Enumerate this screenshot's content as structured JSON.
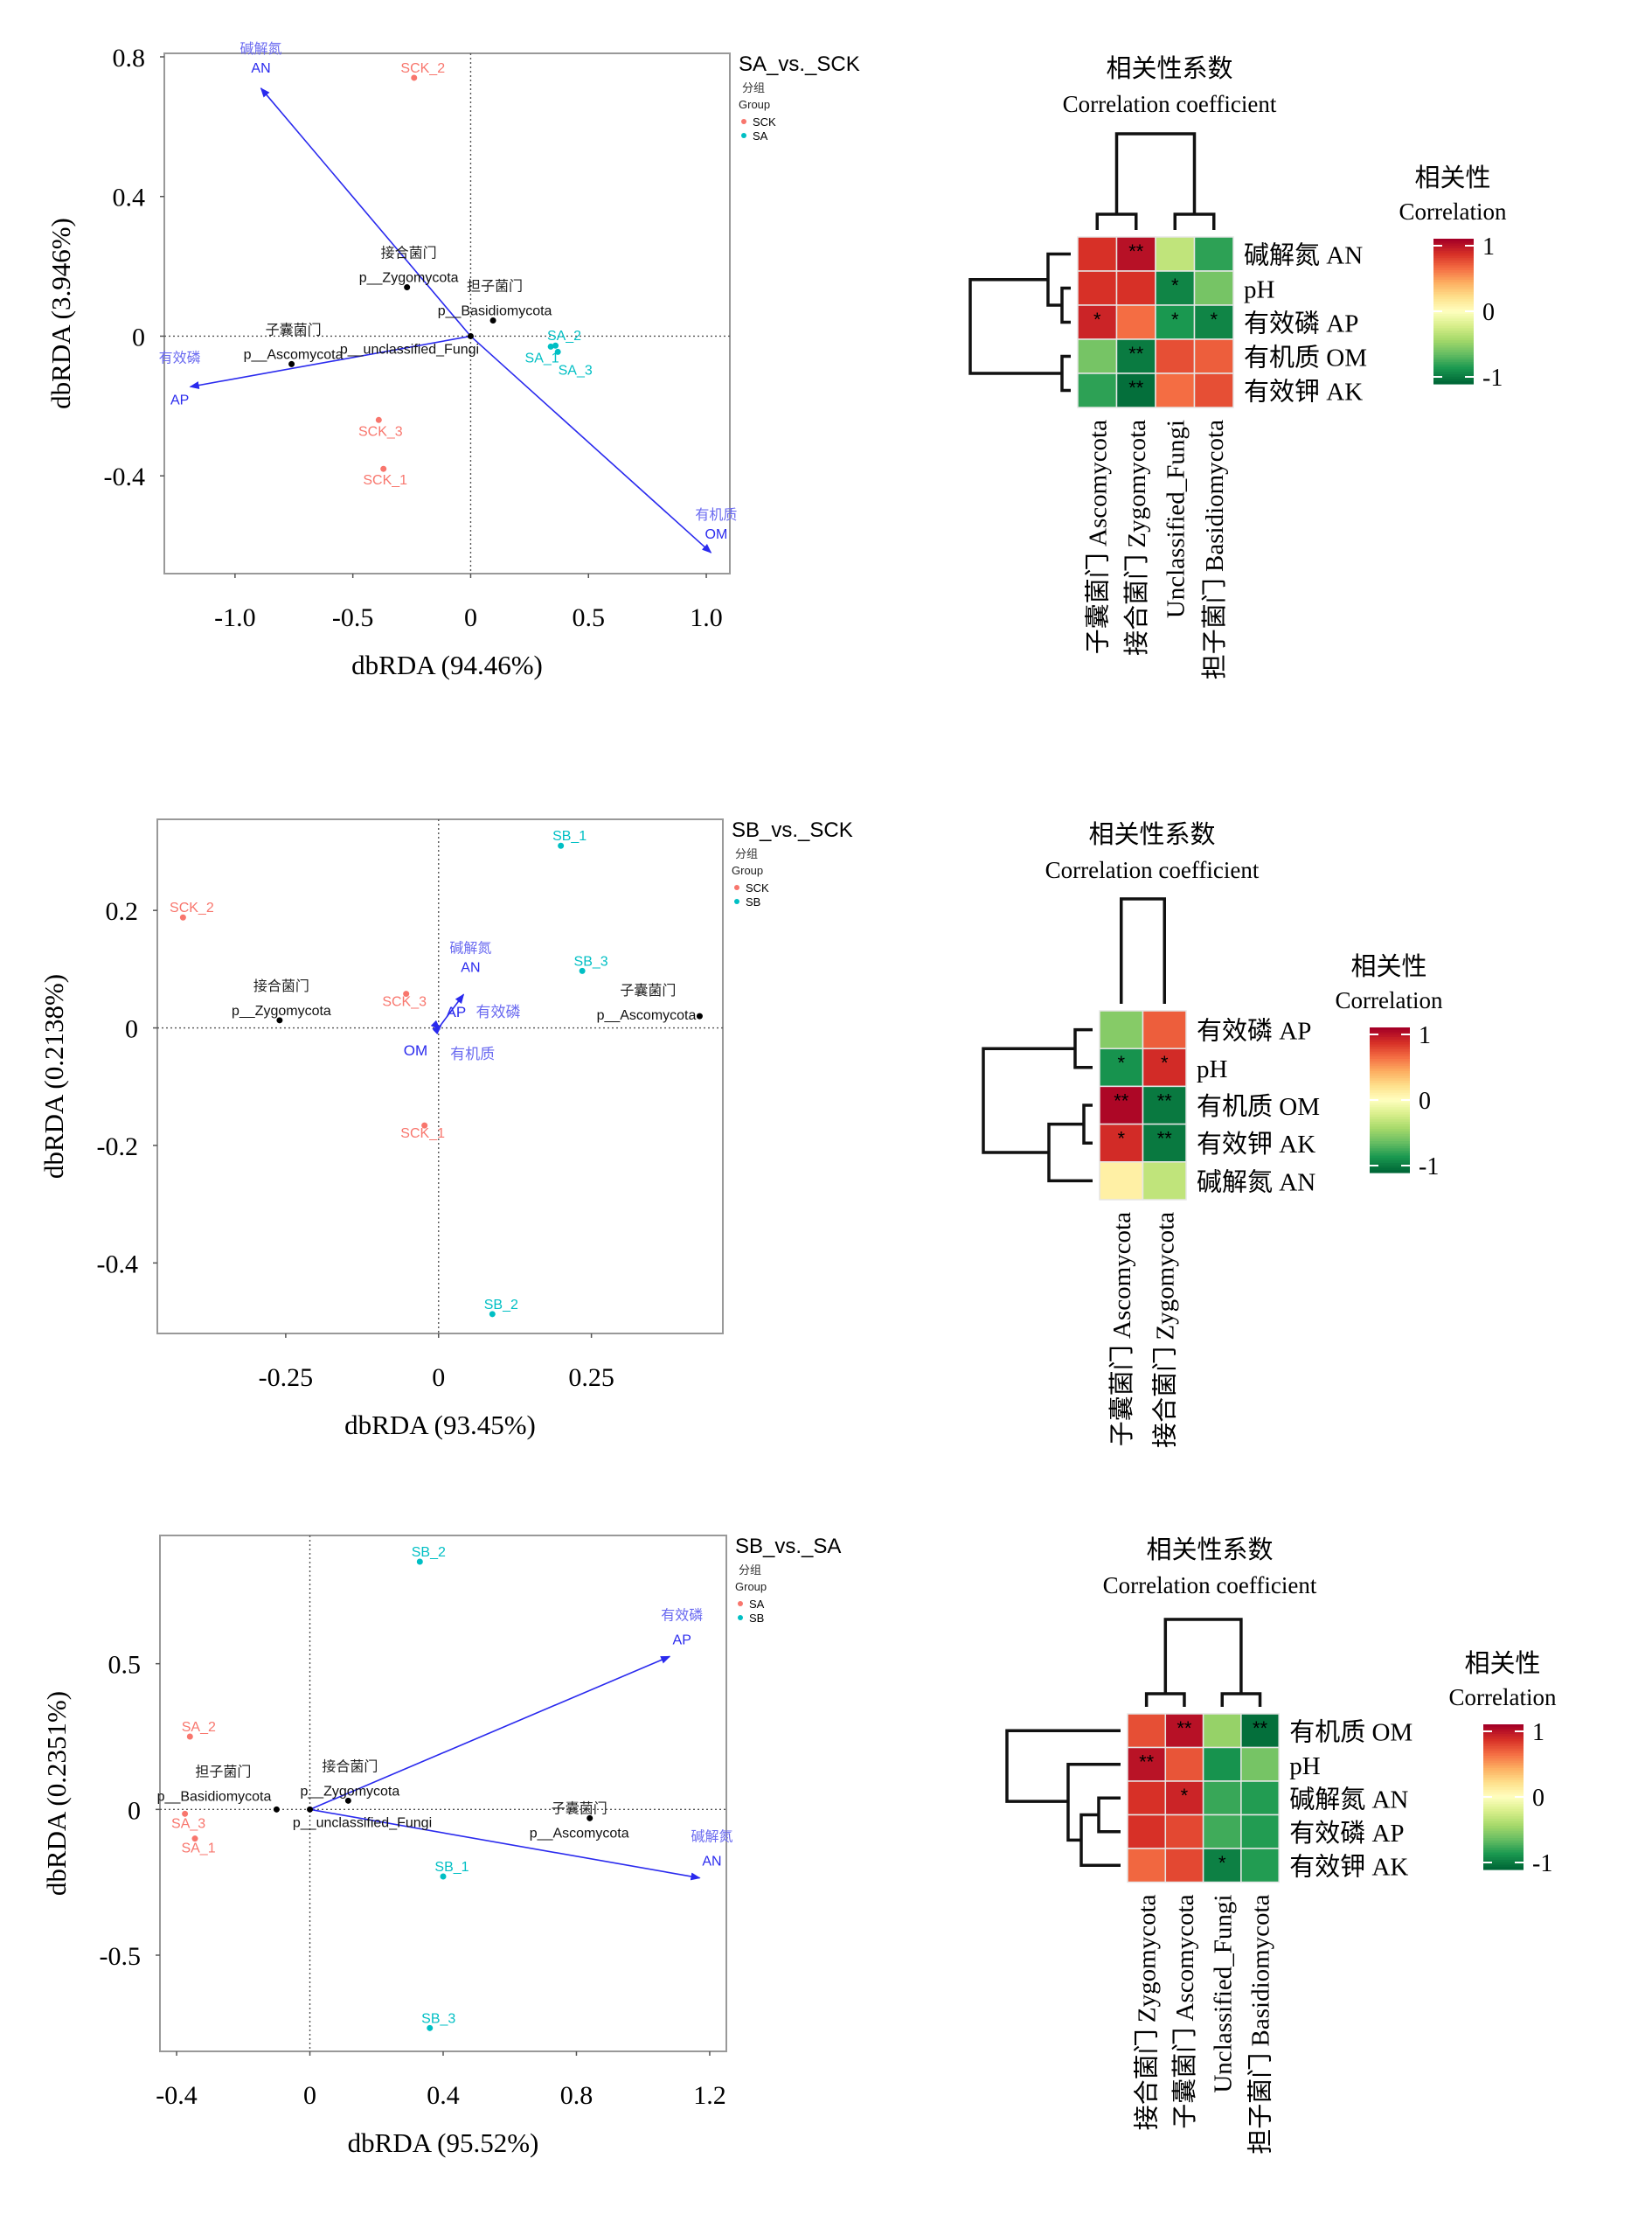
{
  "chart_data": [
    {
      "type": "scatter",
      "subtype": "dbRDA biplot",
      "title": "SA_vs._SCK",
      "xlabel": "dbRDA (94.46%)",
      "ylabel": "dbRDA (3.946%)",
      "xlim": [
        -1.3,
        1.1
      ],
      "ylim": [
        -0.68,
        0.81
      ],
      "xticks": [
        -1.0,
        -0.5,
        0,
        0.5,
        1.0
      ],
      "xtick_labels": [
        "-1.0",
        "-0.5",
        "0",
        "0.5",
        "1.0"
      ],
      "yticks": [
        -0.4,
        0,
        0.4,
        0.8
      ],
      "ytick_labels": [
        "-0.4",
        "0",
        "0.4",
        "0.8"
      ],
      "grid": false,
      "reference_lines": "dotted at x=0 and y=0",
      "legend": {
        "title_cn": "分组",
        "title_en": "Group",
        "placement": "right",
        "entries": [
          {
            "label": "SCK",
            "color": "#f8766d"
          },
          {
            "label": "SA",
            "color": "#00bfc4"
          }
        ]
      },
      "samples": [
        {
          "label": "SCK_2",
          "group": "SCK",
          "x": -0.24,
          "y": 0.74
        },
        {
          "label": "SCK_3",
          "group": "SCK",
          "x": -0.39,
          "y": -0.24
        },
        {
          "label": "SCK_1",
          "group": "SCK",
          "x": -0.37,
          "y": -0.38
        },
        {
          "label": "SA_1",
          "group": "SA",
          "x": 0.34,
          "y": -0.03
        },
        {
          "label": "SA_2",
          "group": "SA",
          "x": 0.36,
          "y": -0.027
        },
        {
          "label": "SA_3",
          "group": "SA",
          "x": 0.37,
          "y": -0.045
        }
      ],
      "env_arrows": [
        {
          "label_cn": "碱解氮",
          "label_en": "AN",
          "x": -0.89,
          "y": 0.71
        },
        {
          "label_cn": "有效磷",
          "label_en": "AP",
          "x": -1.19,
          "y": -0.145
        },
        {
          "label_cn": "有机质",
          "label_en": "OM",
          "x": 1.02,
          "y": -0.62
        }
      ],
      "species": [
        {
          "label_cn": "接合菌门",
          "label_en": "p__Zygomycota",
          "x": -0.27,
          "y": 0.14
        },
        {
          "label_cn": "担子菌门",
          "label_en": "p__Basidiomycota",
          "x": 0.095,
          "y": 0.045
        },
        {
          "label_cn": "",
          "label_en": "p__unclassified_Fungi",
          "x": 0.0,
          "y": 0.0
        },
        {
          "label_cn": "子囊菌门",
          "label_en": "p__Ascomycota",
          "x": -0.76,
          "y": -0.08
        }
      ]
    },
    {
      "type": "heatmap",
      "title_cn": "相关性系数",
      "title_en": "Correlation coefficient",
      "legend_title_cn": "相关性",
      "legend_title_en": "Correlation",
      "scale": {
        "min": -1,
        "max": 1,
        "tick_labels": [
          "1",
          "0",
          "-1"
        ],
        "colormap": "RdYlGn reversed"
      },
      "rows": [
        "碱解氮 AN",
        "pH",
        "有效磷 AP",
        "有机质 OM",
        "有效钾 AK"
      ],
      "columns": [
        "子囊菌门 Ascomycota",
        "接合菌门 Zygomycota",
        "Unclassified_Fungi",
        "担子菌门 Basidiomycota"
      ],
      "values": [
        [
          0.8,
          0.93,
          -0.3,
          -0.75
        ],
        [
          0.8,
          0.8,
          -0.88,
          -0.55
        ],
        [
          0.85,
          0.6,
          -0.8,
          -0.88
        ],
        [
          -0.55,
          -0.92,
          0.7,
          0.65
        ],
        [
          -0.75,
          -0.97,
          0.6,
          0.7
        ]
      ],
      "significance": [
        [
          "",
          "**",
          "",
          ""
        ],
        [
          "",
          "",
          "*",
          ""
        ],
        [
          "*",
          "",
          "*",
          "*"
        ],
        [
          "",
          "**",
          "",
          ""
        ],
        [
          "",
          "**",
          "",
          ""
        ]
      ],
      "row_dendrogram": "((AN,(pH,AP)),(OM,AK))",
      "col_dendrogram": "((Ascomycota,Zygomycota),(Unclassified_Fungi,Basidiomycota))"
    },
    {
      "type": "scatter",
      "subtype": "dbRDA biplot",
      "title": "SB_vs._SCK",
      "xlabel": "dbRDA (93.45%)",
      "ylabel": "dbRDA (0.2138%)",
      "xlim": [
        -0.46,
        0.465
      ],
      "ylim": [
        -0.52,
        0.355
      ],
      "xticks": [
        -0.25,
        0,
        0.25
      ],
      "xtick_labels": [
        "-0.25",
        "0",
        "0.25"
      ],
      "yticks": [
        -0.4,
        -0.2,
        0,
        0.2
      ],
      "ytick_labels": [
        "-0.4",
        "-0.2",
        "0",
        "0.2"
      ],
      "grid": false,
      "reference_lines": "dotted at x=0 and y=0",
      "legend": {
        "title_cn": "分组",
        "title_en": "Group",
        "placement": "right",
        "entries": [
          {
            "label": "SCK",
            "color": "#f8766d"
          },
          {
            "label": "SB",
            "color": "#00bfc4"
          }
        ]
      },
      "samples": [
        {
          "label": "SB_1",
          "group": "SB",
          "x": 0.2,
          "y": 0.31
        },
        {
          "label": "SB_3",
          "group": "SB",
          "x": 0.235,
          "y": 0.097
        },
        {
          "label": "SB_2",
          "group": "SB",
          "x": 0.088,
          "y": -0.487
        },
        {
          "label": "SCK_2",
          "group": "SCK",
          "x": -0.418,
          "y": 0.188
        },
        {
          "label": "SCK_3",
          "group": "SCK",
          "x": -0.053,
          "y": 0.058
        },
        {
          "label": "SCK_1",
          "group": "SCK",
          "x": -0.023,
          "y": -0.166
        }
      ],
      "env_arrows": [
        {
          "label_cn": "碱解氮",
          "label_en": "AN",
          "x": 0.041,
          "y": 0.057
        },
        {
          "label_cn": "有效磷",
          "label_en": "AP",
          "x": 0.004,
          "y": 0.004
        },
        {
          "label_cn": "有机质",
          "label_en": "OM",
          "x": 0.002,
          "y": -0.002
        }
      ],
      "species": [
        {
          "label_cn": "接合菌门",
          "label_en": "p__Zygomycota",
          "x": -0.26,
          "y": 0.013
        },
        {
          "label_cn": "子囊菌门",
          "label_en": "p__Ascomycota",
          "x": 0.427,
          "y": 0.02
        }
      ]
    },
    {
      "type": "heatmap",
      "title_cn": "相关性系数",
      "title_en": "Correlation coefficient",
      "legend_title_cn": "相关性",
      "legend_title_en": "Correlation",
      "scale": {
        "min": -1,
        "max": 1,
        "tick_labels": [
          "1",
          "0",
          "-1"
        ],
        "colormap": "RdYlGn reversed"
      },
      "rows": [
        "有效磷 AP",
        "pH",
        "有机质 OM",
        "有效钾 AK",
        "碱解氮 AN"
      ],
      "columns": [
        "子囊菌门 Ascomycota",
        "接合菌门 Zygomycota"
      ],
      "values": [
        [
          -0.5,
          0.65
        ],
        [
          -0.82,
          0.82
        ],
        [
          0.97,
          -0.93
        ],
        [
          0.82,
          -0.93
        ],
        [
          0.1,
          -0.3
        ]
      ],
      "significance": [
        [
          "",
          ""
        ],
        [
          "*",
          "*"
        ],
        [
          "**",
          "**"
        ],
        [
          "*",
          "**"
        ],
        [
          "",
          ""
        ]
      ],
      "row_dendrogram": "((AP,pH),((OM,AK),AN))",
      "col_dendrogram": "(Ascomycota,Zygomycota)"
    },
    {
      "type": "scatter",
      "subtype": "dbRDA biplot",
      "title": "SB_vs._SA",
      "xlabel": "dbRDA (95.52%)",
      "ylabel": "dbRDA (0.2351%)",
      "xlim": [
        -0.45,
        1.25
      ],
      "ylim": [
        -0.83,
        0.94
      ],
      "xticks": [
        -0.4,
        0,
        0.4,
        0.8,
        1.2
      ],
      "xtick_labels": [
        "-0.4",
        "0",
        "0.4",
        "0.8",
        "1.2"
      ],
      "yticks": [
        -0.5,
        0,
        0.5
      ],
      "ytick_labels": [
        "-0.5",
        "0",
        "0.5"
      ],
      "grid": false,
      "reference_lines": "dotted at x=0 and y=0",
      "legend": {
        "title_cn": "分组",
        "title_en": "Group",
        "placement": "right",
        "entries": [
          {
            "label": "SA",
            "color": "#f8766d"
          },
          {
            "label": "SB",
            "color": "#00bfc4"
          }
        ]
      },
      "samples": [
        {
          "label": "SB_2",
          "group": "SB",
          "x": 0.33,
          "y": 0.85
        },
        {
          "label": "SB_1",
          "group": "SB",
          "x": 0.4,
          "y": -0.23
        },
        {
          "label": "SB_3",
          "group": "SB",
          "x": 0.36,
          "y": -0.75
        },
        {
          "label": "SA_2",
          "group": "SA",
          "x": -0.36,
          "y": 0.25
        },
        {
          "label": "SA_3",
          "group": "SA",
          "x": -0.375,
          "y": -0.015
        },
        {
          "label": "SA_1",
          "group": "SA",
          "x": -0.345,
          "y": -0.1
        }
      ],
      "env_arrows": [
        {
          "label_cn": "有效磷",
          "label_en": "AP",
          "x": 1.08,
          "y": 0.525
        },
        {
          "label_cn": "碱解氮",
          "label_en": "AN",
          "x": 1.17,
          "y": -0.235
        }
      ],
      "species": [
        {
          "label_cn": "接合菌门",
          "label_en": "p__Zygomycota",
          "x": 0.115,
          "y": 0.03
        },
        {
          "label_cn": "担子菌门",
          "label_en": "p__Basidiomycota",
          "x": -0.1,
          "y": 0.0
        },
        {
          "label_cn": "",
          "label_en": "p__unclassified_Fungi",
          "x": 0.0,
          "y": 0.0
        },
        {
          "label_cn": "子囊菌门",
          "label_en": "p__Ascomycota",
          "x": 0.84,
          "y": -0.03
        }
      ]
    },
    {
      "type": "heatmap",
      "title_cn": "相关性系数",
      "title_en": "Correlation coefficient",
      "legend_title_cn": "相关性",
      "legend_title_en": "Correlation",
      "scale": {
        "min": -1,
        "max": 1,
        "tick_labels": [
          "1",
          "0",
          "-1"
        ],
        "colormap": "RdYlGn reversed"
      },
      "rows": [
        "有机质 OM",
        "pH",
        "碱解氮 AN",
        "有效磷 AP",
        "有效钾 AK"
      ],
      "columns": [
        "接合菌门 Zygomycota",
        "子囊菌门 Ascomycota",
        "Unclassified_Fungi",
        "担子菌门 Basidiomycota"
      ],
      "values": [
        [
          0.7,
          0.93,
          -0.45,
          -0.97
        ],
        [
          0.92,
          0.68,
          -0.82,
          -0.55
        ],
        [
          0.8,
          0.85,
          -0.72,
          -0.78
        ],
        [
          0.8,
          0.72,
          -0.7,
          -0.78
        ],
        [
          0.62,
          0.72,
          -0.9,
          -0.78
        ]
      ],
      "significance": [
        [
          "",
          "**",
          "",
          "**"
        ],
        [
          "**",
          "",
          "",
          ""
        ],
        [
          "",
          "*",
          "",
          ""
        ],
        [
          "",
          "",
          "",
          ""
        ],
        [
          "",
          "",
          "*",
          ""
        ]
      ],
      "row_dendrogram": "(OM,(pH,((AN,AP),AK)))",
      "col_dendrogram": "((Zygomycota,Ascomycota),(Unclassified_Fungi,Basidiomycota))"
    }
  ],
  "colors": {
    "group_a": "#f8766d",
    "group_b": "#00bfc4",
    "arrow": "#2a2aee",
    "arrow_label_cn": "#6a6af0",
    "species": "#000000",
    "axis_frame": "#999999"
  }
}
